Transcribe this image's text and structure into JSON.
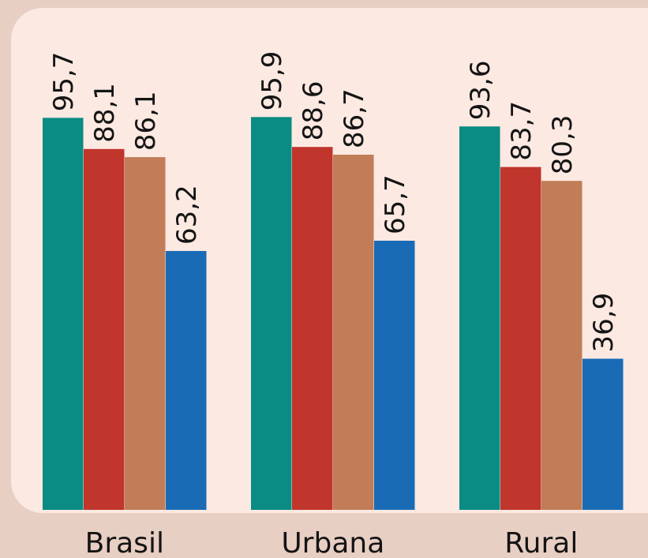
{
  "chart_data": {
    "type": "bar",
    "categories": [
      "Brasil",
      "Urbana",
      "Rural"
    ],
    "series": [
      {
        "values": [
          95.7,
          95.9,
          93.6
        ],
        "color": "#0a8c82"
      },
      {
        "values": [
          88.1,
          88.6,
          83.7
        ],
        "color": "#c0352c"
      },
      {
        "values": [
          86.1,
          86.7,
          80.3
        ],
        "color": "#c07d57"
      },
      {
        "values": [
          63.2,
          65.7,
          36.9
        ],
        "color": "#1a6bb6"
      }
    ],
    "value_labels": [
      [
        "95,7",
        "95,9",
        "93,6"
      ],
      [
        "88,1",
        "88,6",
        "83,7"
      ],
      [
        "86,1",
        "86,7",
        "80,3"
      ],
      [
        "63,2",
        "65,7",
        "36,9"
      ]
    ],
    "ylim": [
      0,
      100
    ],
    "grid": false,
    "legend": "none",
    "colors": {
      "background": "#e8cfc3",
      "panel": "#fbe9e2",
      "text": "#141414"
    }
  }
}
